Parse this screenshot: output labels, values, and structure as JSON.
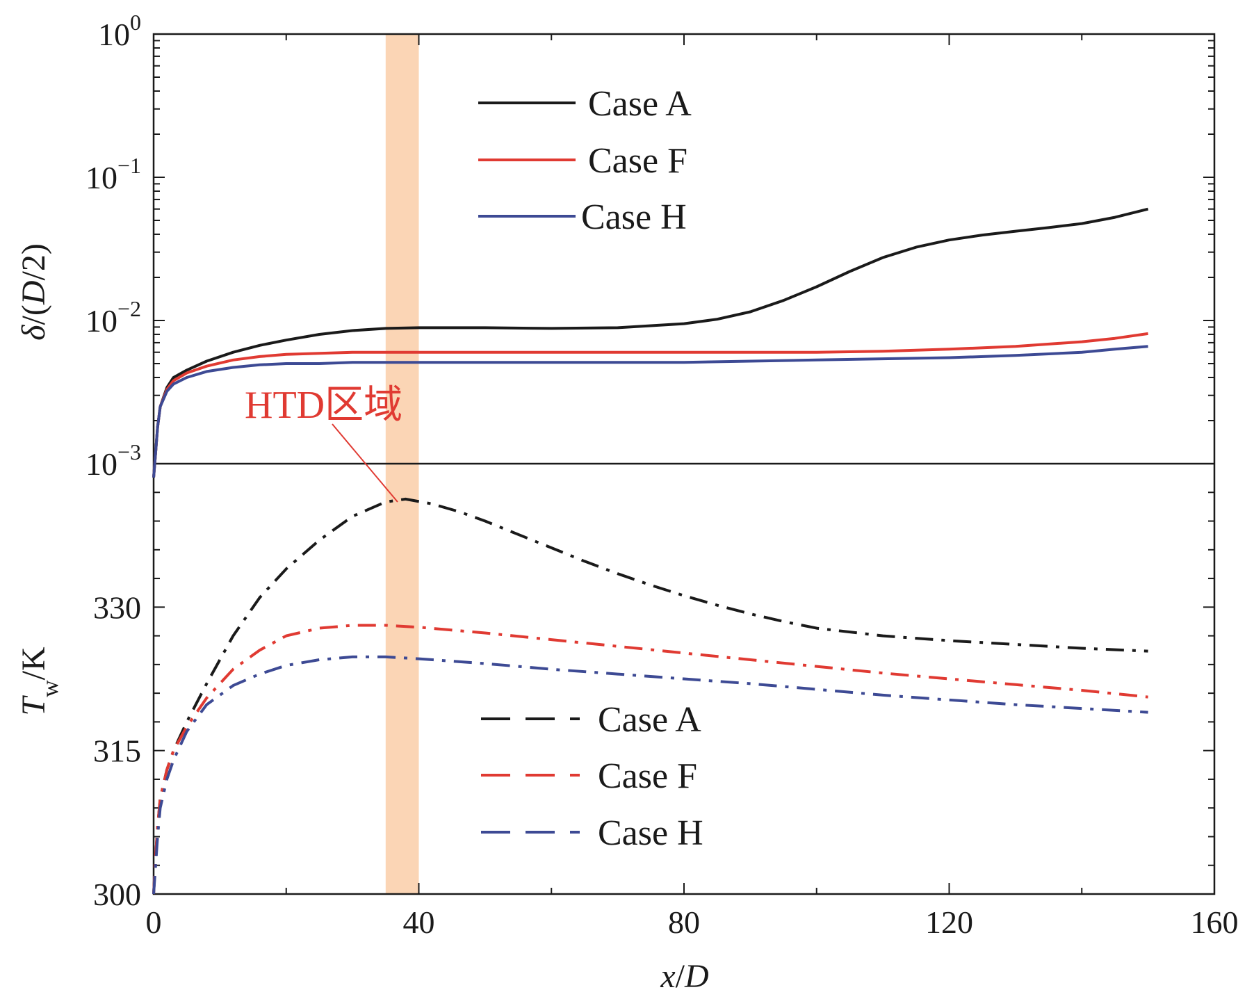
{
  "chart_data": [
    {
      "type": "line",
      "panel": "upper",
      "xlabel": "x/D",
      "ylabel": "δ/(D/2)",
      "yscale": "log",
      "xlim": [
        0,
        160
      ],
      "ylim": [
        0.001,
        1
      ],
      "x_ticks": [
        "0",
        "40",
        "80",
        "120",
        "160"
      ],
      "y_ticks": [
        {
          "value": 1,
          "base": "10",
          "exp": "0"
        },
        {
          "value": 0.1,
          "base": "10",
          "exp": "−1"
        },
        {
          "value": 0.01,
          "base": "10",
          "exp": "−2"
        },
        {
          "value": 0.001,
          "base": "10",
          "exp": "−3"
        }
      ],
      "legend_position": "top-center",
      "series": [
        {
          "name": "Case A",
          "color": "#1a1a1a",
          "line_style": "solid",
          "x": [
            0,
            0.3,
            0.6,
            1,
            2,
            3,
            5,
            8,
            12,
            16,
            20,
            25,
            30,
            35,
            40,
            50,
            60,
            70,
            80,
            85,
            90,
            95,
            100,
            105,
            110,
            115,
            120,
            125,
            130,
            135,
            140,
            145,
            150
          ],
          "y": [
            0.0008,
            0.0012,
            0.0018,
            0.0025,
            0.0034,
            0.004,
            0.0045,
            0.0052,
            0.006,
            0.0067,
            0.0073,
            0.008,
            0.0085,
            0.0088,
            0.0089,
            0.0089,
            0.0088,
            0.0089,
            0.0095,
            0.0102,
            0.0115,
            0.0138,
            0.0172,
            0.022,
            0.0275,
            0.0325,
            0.0365,
            0.0395,
            0.042,
            0.0445,
            0.0475,
            0.0525,
            0.06
          ]
        },
        {
          "name": "Case F",
          "color": "#e03a32",
          "line_style": "solid",
          "x": [
            0,
            0.3,
            0.6,
            1,
            2,
            3,
            5,
            8,
            12,
            16,
            20,
            25,
            30,
            35,
            40,
            50,
            60,
            70,
            80,
            90,
            100,
            110,
            120,
            130,
            140,
            145,
            150
          ],
          "y": [
            0.0008,
            0.0012,
            0.0018,
            0.0025,
            0.0033,
            0.0038,
            0.0043,
            0.0048,
            0.0053,
            0.0056,
            0.0058,
            0.0059,
            0.006,
            0.006,
            0.006,
            0.006,
            0.006,
            0.006,
            0.006,
            0.006,
            0.006,
            0.0061,
            0.0063,
            0.0066,
            0.0071,
            0.0075,
            0.0081
          ]
        },
        {
          "name": "Case H",
          "color": "#3d4a94",
          "line_style": "solid",
          "x": [
            0,
            0.3,
            0.6,
            1,
            2,
            3,
            5,
            8,
            12,
            16,
            20,
            25,
            30,
            35,
            40,
            50,
            60,
            70,
            80,
            90,
            100,
            110,
            120,
            130,
            140,
            145,
            150
          ],
          "y": [
            0.0008,
            0.0012,
            0.0018,
            0.0025,
            0.0032,
            0.0036,
            0.004,
            0.0044,
            0.0047,
            0.0049,
            0.005,
            0.005,
            0.0051,
            0.0051,
            0.0051,
            0.0051,
            0.0051,
            0.0051,
            0.0051,
            0.0052,
            0.0053,
            0.0054,
            0.0055,
            0.0057,
            0.006,
            0.0063,
            0.0066
          ]
        }
      ]
    },
    {
      "type": "line",
      "panel": "lower",
      "xlabel": "x/D",
      "ylabel": "Tw/K",
      "xlim": [
        0,
        160
      ],
      "ylim": [
        300,
        345
      ],
      "y_ticks": [
        "300",
        "315",
        "330"
      ],
      "legend_position": "bottom-center",
      "series": [
        {
          "name": "Case A",
          "color": "#1a1a1a",
          "line_style": "dash-dot",
          "x": [
            0,
            0.3,
            0.6,
            1,
            2,
            3,
            5,
            8,
            12,
            16,
            20,
            25,
            30,
            35,
            38,
            42,
            46,
            50,
            55,
            60,
            65,
            70,
            75,
            80,
            85,
            90,
            95,
            100,
            110,
            120,
            130,
            140,
            150
          ],
          "y": [
            300,
            304,
            307,
            310,
            313,
            315,
            318,
            322,
            327,
            331,
            334,
            337,
            339.5,
            341,
            341.3,
            340.8,
            340,
            339,
            337.6,
            336.2,
            334.8,
            333.5,
            332.3,
            331.2,
            330.2,
            329.3,
            328.5,
            327.8,
            327,
            326.5,
            326.1,
            325.7,
            325.4
          ]
        },
        {
          "name": "Case F",
          "color": "#e03a32",
          "line_style": "dash-dot",
          "x": [
            0,
            0.3,
            0.6,
            1,
            2,
            3,
            5,
            8,
            12,
            16,
            20,
            25,
            30,
            35,
            40,
            50,
            60,
            70,
            80,
            90,
            100,
            110,
            120,
            130,
            140,
            150
          ],
          "y": [
            300,
            304,
            307,
            310,
            313,
            315,
            317.5,
            320.5,
            323.5,
            325.5,
            327,
            327.8,
            328.1,
            328.1,
            327.9,
            327.3,
            326.6,
            325.9,
            325.2,
            324.5,
            323.8,
            323.1,
            322.5,
            321.9,
            321.3,
            320.6
          ]
        },
        {
          "name": "Case H",
          "color": "#3d4a94",
          "line_style": "dash-dot",
          "x": [
            0,
            0.3,
            0.6,
            1,
            2,
            3,
            5,
            8,
            12,
            16,
            20,
            25,
            30,
            35,
            40,
            50,
            60,
            70,
            80,
            90,
            100,
            110,
            120,
            130,
            140,
            150
          ],
          "y": [
            300,
            303,
            306,
            309,
            312,
            314,
            317,
            319.8,
            321.8,
            323,
            323.9,
            324.5,
            324.8,
            324.8,
            324.6,
            324.1,
            323.5,
            323,
            322.5,
            322,
            321.4,
            320.8,
            320.3,
            319.8,
            319.4,
            319
          ]
        }
      ]
    }
  ],
  "annotation": {
    "label": "HTD区域",
    "band_x": [
      35,
      40
    ],
    "band_color": "#fbd5b5",
    "text_color": "#e03a32"
  }
}
